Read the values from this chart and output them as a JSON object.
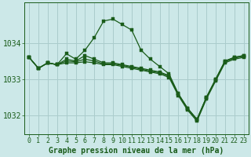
{
  "title": "Graphe pression niveau de la mer (hPa)",
  "background_color": "#cce8e8",
  "grid_color": "#aacccc",
  "line_color": "#1a5c1a",
  "marker_color": "#1a5c1a",
  "xlim": [
    -0.5,
    23.5
  ],
  "ylim": [
    1031.5,
    1035.1
  ],
  "yticks": [
    1032,
    1033,
    1034
  ],
  "xticks": [
    0,
    1,
    2,
    3,
    4,
    5,
    6,
    7,
    8,
    9,
    10,
    11,
    12,
    13,
    14,
    15,
    16,
    17,
    18,
    19,
    20,
    21,
    22,
    23
  ],
  "series": [
    [
      1033.6,
      1033.3,
      1033.45,
      1033.4,
      1033.7,
      1033.55,
      1033.8,
      1034.15,
      1034.6,
      1034.65,
      1034.5,
      1034.35,
      1033.8,
      1033.55,
      1033.35,
      1033.15,
      1032.6,
      1032.2,
      1031.9,
      1032.5,
      1033.0,
      1033.5,
      1033.6,
      1033.65
    ],
    [
      1033.6,
      1033.3,
      1033.45,
      1033.4,
      1033.55,
      1033.5,
      1033.65,
      1033.55,
      1033.45,
      1033.45,
      1033.4,
      1033.35,
      1033.3,
      1033.25,
      1033.2,
      1033.1,
      1032.6,
      1032.2,
      1031.9,
      1032.5,
      1033.0,
      1033.5,
      1033.6,
      1033.65
    ],
    [
      1033.6,
      1033.3,
      1033.45,
      1033.4,
      1033.5,
      1033.48,
      1033.55,
      1033.5,
      1033.42,
      1033.42,
      1033.38,
      1033.33,
      1033.28,
      1033.22,
      1033.18,
      1033.08,
      1032.58,
      1032.18,
      1031.88,
      1032.48,
      1032.98,
      1033.48,
      1033.58,
      1033.63
    ],
    [
      1033.6,
      1033.3,
      1033.45,
      1033.4,
      1033.45,
      1033.45,
      1033.48,
      1033.45,
      1033.4,
      1033.4,
      1033.35,
      1033.3,
      1033.25,
      1033.2,
      1033.15,
      1033.05,
      1032.55,
      1032.15,
      1031.85,
      1032.45,
      1032.95,
      1033.45,
      1033.55,
      1033.6
    ]
  ],
  "xlabel_fontsize": 6,
  "ylabel_fontsize": 7,
  "title_fontsize": 7,
  "marker_size": 2.2,
  "line_width": 0.9
}
